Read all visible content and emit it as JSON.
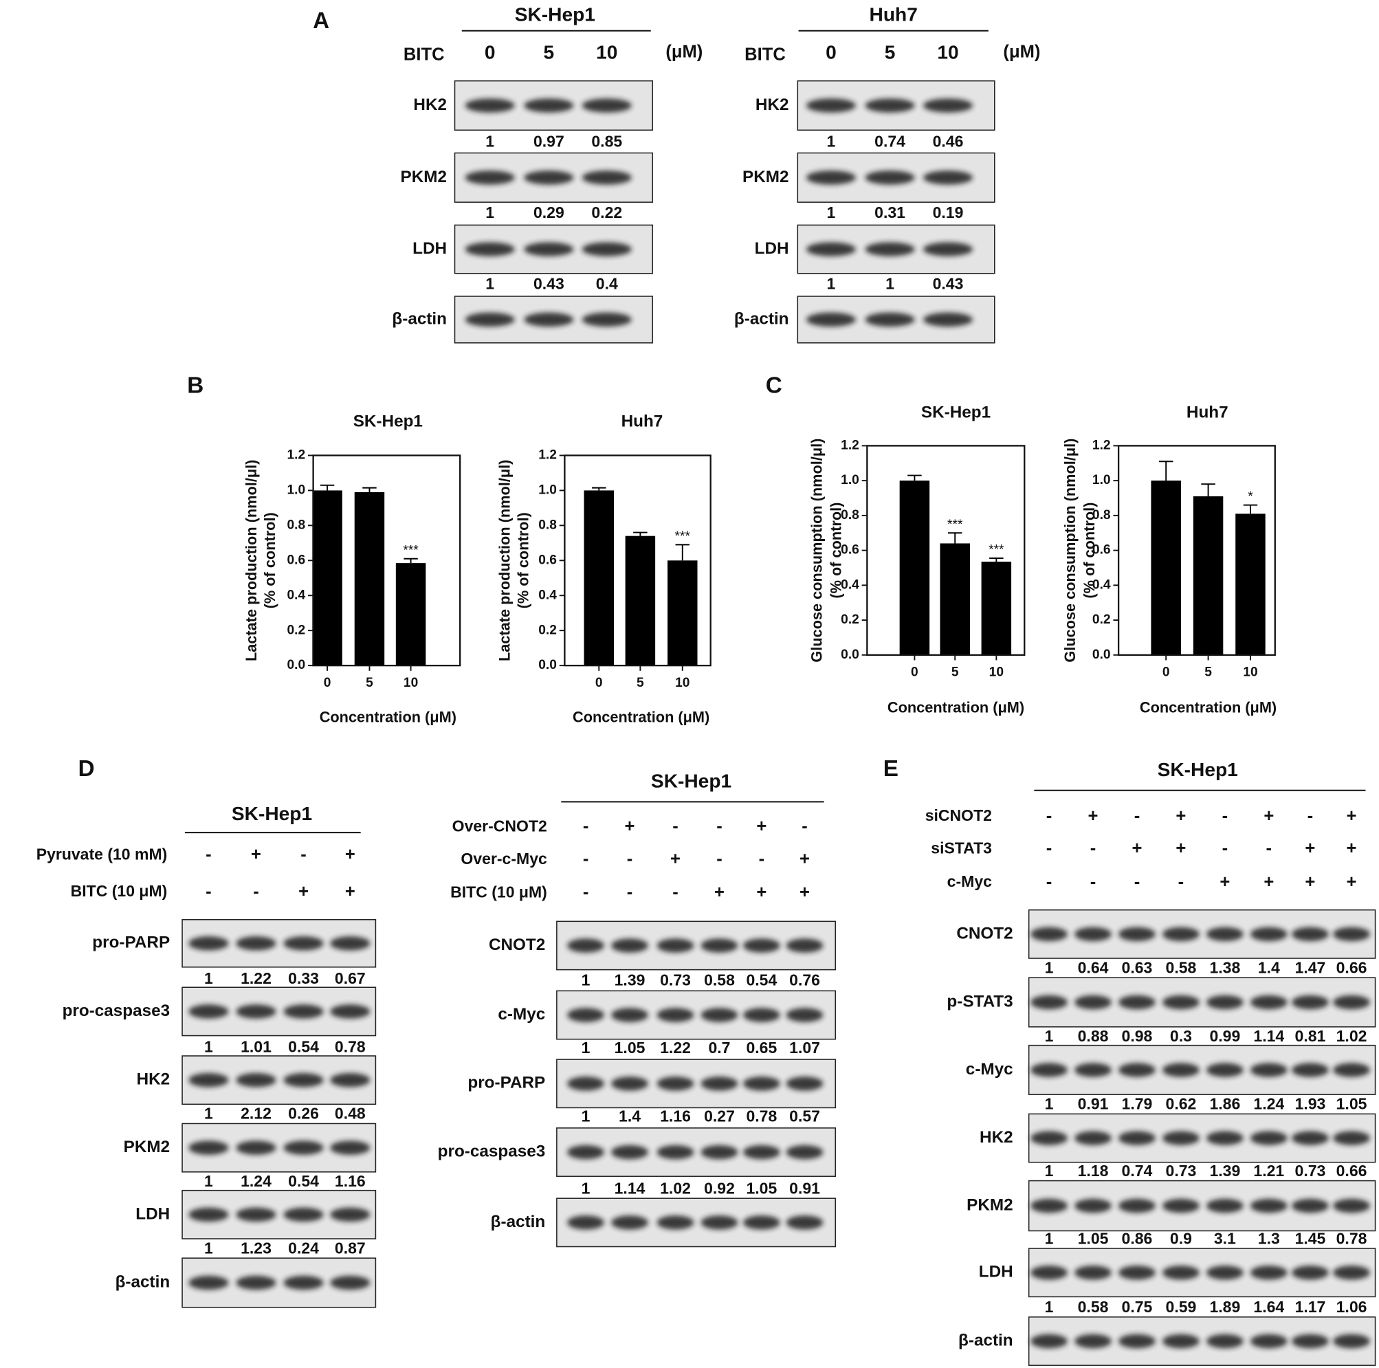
{
  "panel_labels": [
    "A",
    "B",
    "C",
    "D",
    "E"
  ],
  "blots": [
    {
      "title": "SK-Hep1",
      "treatment": "BITC",
      "doses": [
        0,
        5,
        10
      ],
      "unit": "(μM)",
      "rows": [
        {
          "label": "HK2",
          "quant": [
            1,
            0.97,
            0.85
          ]
        },
        {
          "label": "PKM2",
          "quant": [
            1,
            0.29,
            0.22
          ]
        },
        {
          "label": "LDH",
          "quant": [
            1,
            0.43,
            0.4
          ]
        },
        {
          "label": "β-actin"
        }
      ]
    },
    {
      "title": "Huh7",
      "treatment": "BITC",
      "doses": [
        0,
        5,
        10
      ],
      "unit": "(μM)",
      "rows": [
        {
          "label": "HK2",
          "quant": [
            1,
            0.74,
            0.46
          ]
        },
        {
          "label": "PKM2",
          "quant": [
            1,
            0.31,
            0.19
          ]
        },
        {
          "label": "LDH",
          "quant": [
            1,
            1,
            0.43
          ]
        },
        {
          "label": "β-actin"
        }
      ]
    },
    {
      "title": "SK-Hep1",
      "conditions": [
        {
          "label": "Pyruvate (10 mM)",
          "signs": [
            "-",
            "+",
            "-",
            "+"
          ]
        },
        {
          "label": "BITC (10 μM)",
          "signs": [
            "-",
            "-",
            "+",
            "+"
          ]
        }
      ],
      "rows": [
        {
          "label": "pro-PARP",
          "quant": [
            1,
            1.22,
            0.33,
            0.67
          ]
        },
        {
          "label": "pro-caspase3",
          "quant": [
            1,
            1.01,
            0.54,
            0.78
          ]
        },
        {
          "label": "HK2",
          "quant": [
            1,
            2.12,
            0.26,
            0.48
          ]
        },
        {
          "label": "PKM2",
          "quant": [
            1,
            1.24,
            0.54,
            1.16
          ]
        },
        {
          "label": "LDH",
          "quant": [
            1,
            1.23,
            0.24,
            0.87
          ]
        },
        {
          "label": "β-actin"
        }
      ]
    },
    {
      "title": "SK-Hep1",
      "conditions": [
        {
          "label": "Over-CNOT2",
          "signs": [
            "-",
            "+",
            "-",
            "-",
            "+",
            "-"
          ]
        },
        {
          "label": "Over-c-Myc",
          "signs": [
            "-",
            "-",
            "+",
            "-",
            "-",
            "+"
          ]
        },
        {
          "label": "BITC (10 μM)",
          "signs": [
            "-",
            "-",
            "-",
            "+",
            "+",
            "+"
          ]
        }
      ],
      "rows": [
        {
          "label": "CNOT2",
          "quant": [
            1,
            1.39,
            0.73,
            0.58,
            0.54,
            0.76
          ]
        },
        {
          "label": "c-Myc",
          "quant": [
            1,
            1.05,
            1.22,
            0.7,
            0.65,
            1.07
          ]
        },
        {
          "label": "pro-PARP",
          "quant": [
            1,
            1.4,
            1.16,
            0.27,
            0.78,
            0.57
          ]
        },
        {
          "label": "pro-caspase3",
          "quant": [
            1,
            1.14,
            1.02,
            0.92,
            1.05,
            0.91
          ]
        },
        {
          "label": "β-actin"
        }
      ]
    },
    {
      "title": "SK-Hep1",
      "conditions": [
        {
          "label": "siCNOT2",
          "signs": [
            "-",
            "+",
            "-",
            "+",
            "-",
            "+",
            "-",
            "+"
          ]
        },
        {
          "label": "siSTAT3",
          "signs": [
            "-",
            "-",
            "+",
            "+",
            "-",
            "-",
            "+",
            "+"
          ]
        },
        {
          "label": "c-Myc",
          "signs": [
            "-",
            "-",
            "-",
            "-",
            "+",
            "+",
            "+",
            "+"
          ]
        }
      ],
      "rows": [
        {
          "label": "CNOT2",
          "quant": [
            1,
            0.64,
            0.63,
            0.58,
            1.38,
            1.4,
            1.47,
            0.66
          ]
        },
        {
          "label": "p-STAT3",
          "quant": [
            1,
            0.88,
            0.98,
            0.3,
            0.99,
            1.14,
            0.81,
            1.02
          ]
        },
        {
          "label": "c-Myc",
          "quant": [
            1,
            0.91,
            1.79,
            0.62,
            1.86,
            1.24,
            1.93,
            1.05
          ]
        },
        {
          "label": "HK2",
          "quant": [
            1,
            1.18,
            0.74,
            0.73,
            1.39,
            1.21,
            0.73,
            0.66
          ]
        },
        {
          "label": "PKM2",
          "quant": [
            1,
            1.05,
            0.86,
            0.9,
            3.1,
            1.3,
            1.45,
            0.78
          ]
        },
        {
          "label": "LDH",
          "quant": [
            1,
            0.58,
            0.75,
            0.59,
            1.89,
            1.64,
            1.17,
            1.06
          ]
        },
        {
          "label": "β-actin"
        }
      ]
    }
  ],
  "chart_data": [
    {
      "type": "bar",
      "title": "SK-Hep1",
      "ylabel": [
        "Lactate production (nmol/μl)",
        "(% of control)"
      ],
      "xlabel": "Concentration (μM)",
      "categories": [
        "0",
        "5",
        "10"
      ],
      "values": [
        1.0,
        0.99,
        0.585
      ],
      "errors": [
        0.03,
        0.025,
        0.025
      ],
      "significance": [
        null,
        null,
        "***"
      ],
      "color": "#000000",
      "ylim": [
        0,
        1.2
      ],
      "yticks": [
        {
          "value": 0,
          "label": "0.0"
        },
        0.2,
        0.4,
        0.6,
        0.8,
        {
          "value": 1,
          "label": "1.0"
        },
        1.2
      ]
    },
    {
      "type": "bar",
      "title": "Huh7",
      "ylabel": [
        "Lactate production (nmol/μl)",
        "(% of control)"
      ],
      "xlabel": "Concentration (μM)",
      "categories": [
        "0",
        "5",
        "10"
      ],
      "values": [
        1.0,
        0.74,
        0.6
      ],
      "errors": [
        0.015,
        0.02,
        0.09
      ],
      "significance": [
        null,
        null,
        "***"
      ],
      "color": "#000000",
      "ylim": [
        0,
        1.2
      ],
      "yticks": [
        {
          "value": 0,
          "label": "0.0"
        },
        0.2,
        0.4,
        0.6,
        0.8,
        {
          "value": 1,
          "label": "1.0"
        },
        1.2
      ]
    },
    {
      "type": "bar",
      "title": "SK-Hep1",
      "ylabel": [
        "Glucose consumption (nmol/μl)",
        "(% of control)"
      ],
      "xlabel": "Concentration (μM)",
      "categories": [
        "0",
        "5",
        "10"
      ],
      "values": [
        1.0,
        0.64,
        0.535
      ],
      "errors": [
        0.03,
        0.06,
        0.02
      ],
      "significance": [
        null,
        "***",
        "***"
      ],
      "color": "#000000",
      "ylim": [
        0,
        1.2
      ],
      "yticks": [
        {
          "value": 0,
          "label": "0.0"
        },
        0.2,
        0.4,
        0.6,
        0.8,
        {
          "value": 1,
          "label": "1.0"
        },
        1.2
      ]
    },
    {
      "type": "bar",
      "title": "Huh7",
      "ylabel": [
        "Glucose consumption (nmol/μl)",
        "(% of control)"
      ],
      "xlabel": "Concentration (μM)",
      "categories": [
        "0",
        "5",
        "10"
      ],
      "values": [
        1.0,
        0.91,
        0.81
      ],
      "errors": [
        0.11,
        0.07,
        0.05
      ],
      "significance": [
        null,
        null,
        "*"
      ],
      "color": "#000000",
      "ylim": [
        0,
        1.2
      ],
      "yticks": [
        {
          "value": 0,
          "label": "0.0"
        },
        0.2,
        0.4,
        0.6,
        0.8,
        {
          "value": 1,
          "label": "1.0"
        },
        1.2
      ]
    }
  ]
}
